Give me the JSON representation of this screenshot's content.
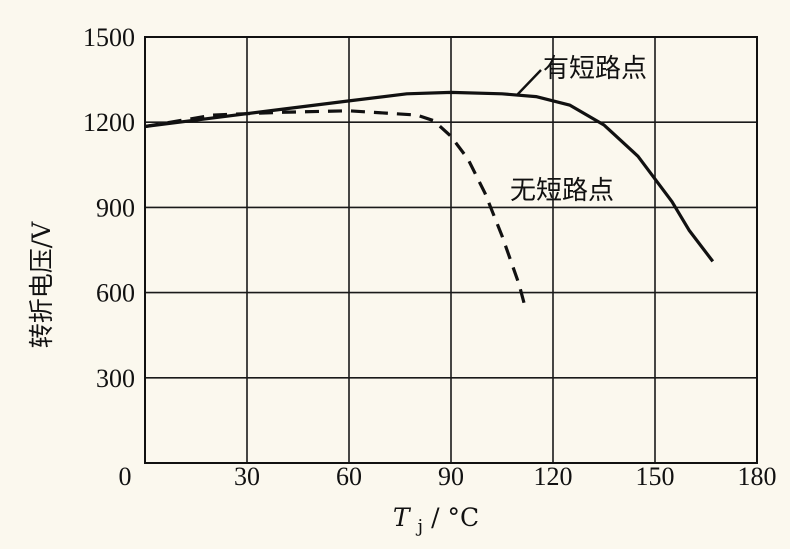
{
  "chart_data": {
    "type": "line",
    "title": "",
    "xlabel_main": "T",
    "xlabel_sub": "j",
    "xlabel_unit": " / °C",
    "ylabel": "转折电压/V",
    "xlim": [
      0,
      180
    ],
    "ylim": [
      0,
      1500
    ],
    "xticks": [
      0,
      30,
      60,
      90,
      120,
      150,
      180
    ],
    "yticks": [
      0,
      300,
      600,
      900,
      1200,
      1500
    ],
    "grid": true,
    "series": [
      {
        "name": "有短路点",
        "style": "solid",
        "color": "#111111",
        "x": [
          0,
          20,
          40,
          60,
          77,
          90,
          105,
          115,
          125,
          135,
          145,
          155,
          160,
          167
        ],
        "y": [
          1185,
          1215,
          1245,
          1275,
          1300,
          1305,
          1300,
          1290,
          1260,
          1190,
          1080,
          920,
          820,
          710
        ]
      },
      {
        "name": "无短路点",
        "style": "dashed",
        "color": "#111111",
        "x": [
          0,
          20,
          40,
          60,
          80,
          85,
          90,
          95,
          100,
          105,
          110,
          112
        ],
        "y": [
          1185,
          1225,
          1235,
          1240,
          1225,
          1205,
          1150,
          1070,
          950,
          800,
          630,
          540
        ]
      }
    ]
  }
}
